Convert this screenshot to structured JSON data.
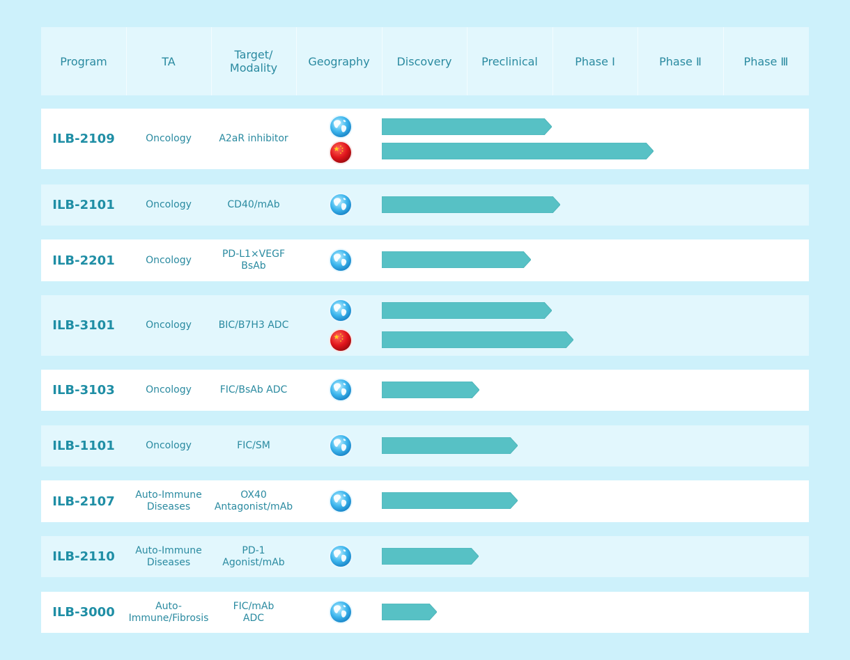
{
  "header": {
    "program": "Program",
    "ta": "TA",
    "target_line1": "Target/",
    "target_line2": "Modality",
    "geography": "Geography",
    "discovery": "Discovery",
    "preclinical": "Preclinical",
    "phase1": "Phase Ⅰ",
    "phase2": "Phase Ⅱ",
    "phase3": "Phase Ⅲ"
  },
  "colors": {
    "background": "#cdf1fb",
    "header_bg": "#e2f7fd",
    "row_tint": "#e2f7fd",
    "row_light": "#ffffff",
    "bar_fill": "#57c1c5",
    "program_text": "#1f8ea5",
    "body_text": "#2a8aa0"
  },
  "chart_data": {
    "type": "table",
    "stages": [
      "Discovery",
      "Preclinical",
      "Phase Ⅰ",
      "Phase Ⅱ",
      "Phase Ⅲ"
    ],
    "progress_unit": "stages completed (0-5)",
    "programs": [
      {
        "program": "ILB-2109",
        "ta": [
          "Oncology"
        ],
        "target": [
          "A2aR inhibitor"
        ],
        "tracks": [
          {
            "geography": "globe-icon",
            "progress": 2.0
          },
          {
            "geography": "china-flag-icon",
            "progress": 3.2
          }
        ]
      },
      {
        "program": "ILB-2101",
        "ta": [
          "Oncology"
        ],
        "target": [
          "CD40/mAb"
        ],
        "tracks": [
          {
            "geography": "globe-icon",
            "progress": 2.1
          }
        ]
      },
      {
        "program": "ILB-2201",
        "ta": [
          "Oncology"
        ],
        "target": [
          "PD-L1×VEGF",
          "BsAb"
        ],
        "tracks": [
          {
            "geography": "globe-icon",
            "progress": 1.75
          }
        ]
      },
      {
        "program": "ILB-3101",
        "ta": [
          "Oncology"
        ],
        "target": [
          "BIC/B7H3 ADC"
        ],
        "tracks": [
          {
            "geography": "globe-icon",
            "progress": 2.0
          },
          {
            "geography": "china-flag-icon",
            "progress": 2.25
          }
        ]
      },
      {
        "program": "ILB-3103",
        "ta": [
          "Oncology"
        ],
        "target": [
          "FIC/BsAb ADC"
        ],
        "tracks": [
          {
            "geography": "globe-icon",
            "progress": 1.15
          }
        ]
      },
      {
        "program": "ILB-1101",
        "ta": [
          "Oncology"
        ],
        "target": [
          "FIC/SM"
        ],
        "tracks": [
          {
            "geography": "globe-icon",
            "progress": 1.6
          }
        ]
      },
      {
        "program": "ILB-2107",
        "ta": [
          "Auto-Immune",
          "Diseases"
        ],
        "target": [
          "OX40",
          "Antagonist/mAb"
        ],
        "tracks": [
          {
            "geography": "globe-icon",
            "progress": 1.6
          }
        ]
      },
      {
        "program": "ILB-2110",
        "ta": [
          "Auto-Immune",
          "Diseases"
        ],
        "target": [
          "PD-1",
          "Agonist/mAb"
        ],
        "tracks": [
          {
            "geography": "globe-icon",
            "progress": 1.14
          }
        ]
      },
      {
        "program": "ILB-3000",
        "ta": [
          "Auto-",
          "Immune/Fibrosis"
        ],
        "target": [
          "FIC/mAb",
          "ADC"
        ],
        "tracks": [
          {
            "geography": "globe-icon",
            "progress": 0.65
          }
        ]
      }
    ]
  }
}
